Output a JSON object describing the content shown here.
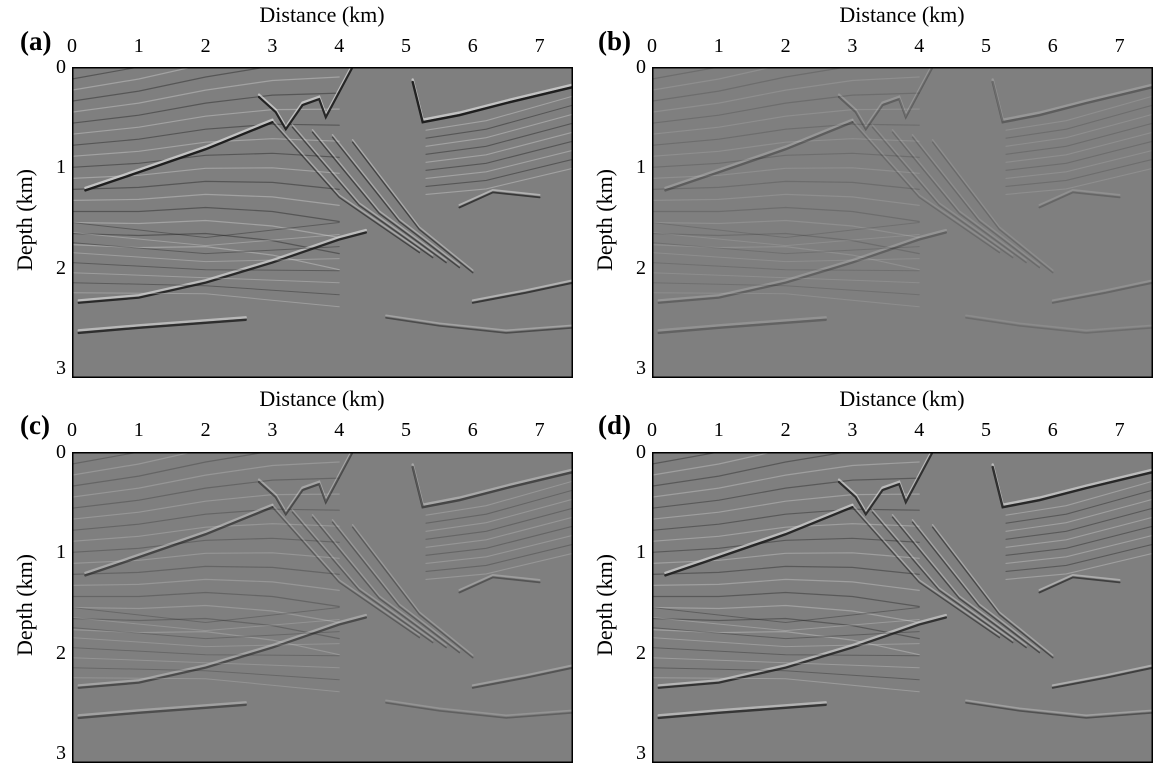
{
  "panels": [
    {
      "label": "(a)",
      "x_axis_title": "Distance (km)",
      "y_axis_title": "Depth (km)",
      "reflector_strength": 1.0
    },
    {
      "label": "(b)",
      "x_axis_title": "Distance (km)",
      "y_axis_title": "Depth (km)",
      "reflector_strength": 0.35
    },
    {
      "label": "(c)",
      "x_axis_title": "Distance (km)",
      "y_axis_title": "Depth (km)",
      "reflector_strength": 0.6
    },
    {
      "label": "(d)",
      "x_axis_title": "Distance (km)",
      "y_axis_title": "Depth (km)",
      "reflector_strength": 0.9
    }
  ],
  "x_axis": {
    "range": [
      0,
      7.5
    ],
    "ticks": [
      "0",
      "1",
      "2",
      "3",
      "4",
      "5",
      "6",
      "7"
    ]
  },
  "y_axis": {
    "range": [
      0,
      3.1
    ],
    "ticks": [
      "0",
      "1",
      "2",
      "3"
    ]
  },
  "colors": {
    "background_gray": "#7f7f7f",
    "dark_reflector": "#1a1a1a",
    "light_reflector": "#d8d8d8"
  }
}
